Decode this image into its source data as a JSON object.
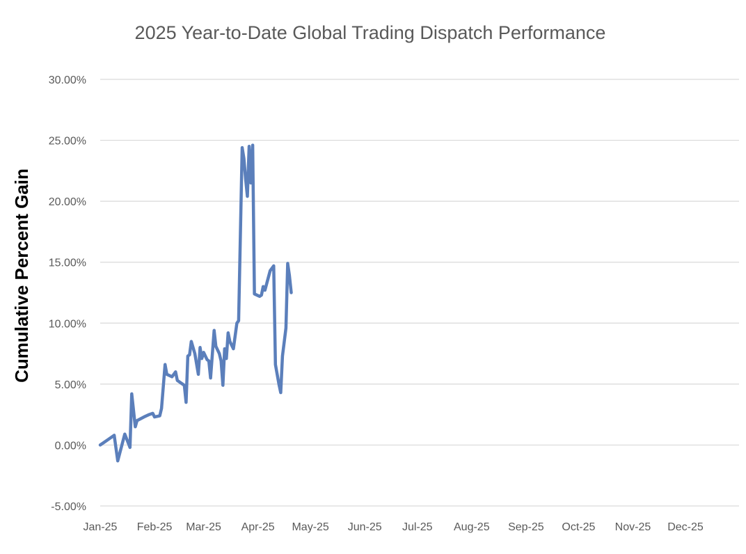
{
  "chart_data": {
    "type": "line",
    "title": "2025 Year-to-Date Global Trading Dispatch Performance",
    "xlabel": "",
    "ylabel": "Cumulative Percent Gain",
    "x_tick_labels": [
      "Jan-25",
      "Feb-25",
      "Mar-25",
      "Apr-25",
      "May-25",
      "Jun-25",
      "Jul-25",
      "Aug-25",
      "Sep-25",
      "Oct-25",
      "Nov-25",
      "Dec-25"
    ],
    "y_tick_labels": [
      "-5.00%",
      "0.00%",
      "5.00%",
      "10.00%",
      "15.00%",
      "20.00%",
      "25.00%",
      "30.00%"
    ],
    "ylim": [
      -5,
      30
    ],
    "y_ticks": [
      -5,
      0,
      5,
      10,
      15,
      20,
      25,
      30
    ],
    "xlim_day": [
      0,
      334
    ],
    "month_start_days": [
      0,
      31,
      59,
      90,
      120,
      151,
      181,
      212,
      243,
      273,
      304,
      334
    ],
    "grid": "horizontal",
    "legend": "none",
    "series": [
      {
        "name": "Cumulative Percent Gain",
        "color": "#5b7fbb",
        "points": [
          [
            0,
            0.0
          ],
          [
            5,
            0.5
          ],
          [
            8,
            0.8
          ],
          [
            10,
            -1.3
          ],
          [
            14,
            0.9
          ],
          [
            17,
            -0.2
          ],
          [
            18,
            4.2
          ],
          [
            20,
            1.5
          ],
          [
            21,
            2.0
          ],
          [
            25,
            2.3
          ],
          [
            28,
            2.5
          ],
          [
            30,
            2.6
          ],
          [
            31,
            2.3
          ],
          [
            34,
            2.4
          ],
          [
            35,
            3.0
          ],
          [
            37,
            6.6
          ],
          [
            38,
            5.8
          ],
          [
            41,
            5.6
          ],
          [
            43,
            6.0
          ],
          [
            44,
            5.3
          ],
          [
            46,
            5.1
          ],
          [
            48,
            4.9
          ],
          [
            49,
            3.5
          ],
          [
            50,
            7.3
          ],
          [
            51,
            7.4
          ],
          [
            52,
            8.5
          ],
          [
            54,
            7.5
          ],
          [
            56,
            5.8
          ],
          [
            57,
            8.0
          ],
          [
            58,
            7.1
          ],
          [
            59,
            7.6
          ],
          [
            61,
            7.0
          ],
          [
            62,
            6.9
          ],
          [
            63,
            5.5
          ],
          [
            65,
            9.4
          ],
          [
            66,
            8.1
          ],
          [
            68,
            7.5
          ],
          [
            69,
            6.9
          ],
          [
            70,
            4.9
          ],
          [
            71,
            7.9
          ],
          [
            72,
            7.1
          ],
          [
            73,
            9.2
          ],
          [
            74,
            8.5
          ],
          [
            76,
            7.9
          ],
          [
            78,
            10.0
          ],
          [
            79,
            10.2
          ],
          [
            81,
            24.4
          ],
          [
            82,
            23.5
          ],
          [
            83,
            21.8
          ],
          [
            84,
            20.4
          ],
          [
            85,
            24.5
          ],
          [
            86,
            21.5
          ],
          [
            87,
            24.6
          ],
          [
            88,
            12.4
          ],
          [
            91,
            12.2
          ],
          [
            92,
            12.3
          ],
          [
            93,
            13.0
          ],
          [
            94,
            12.7
          ],
          [
            97,
            14.3
          ],
          [
            98,
            14.5
          ],
          [
            99,
            14.7
          ],
          [
            100,
            6.6
          ],
          [
            102,
            5.0
          ],
          [
            103,
            4.3
          ],
          [
            104,
            7.3
          ],
          [
            106,
            9.6
          ],
          [
            107,
            14.9
          ],
          [
            108,
            13.9
          ],
          [
            109,
            12.5
          ]
        ]
      }
    ]
  }
}
